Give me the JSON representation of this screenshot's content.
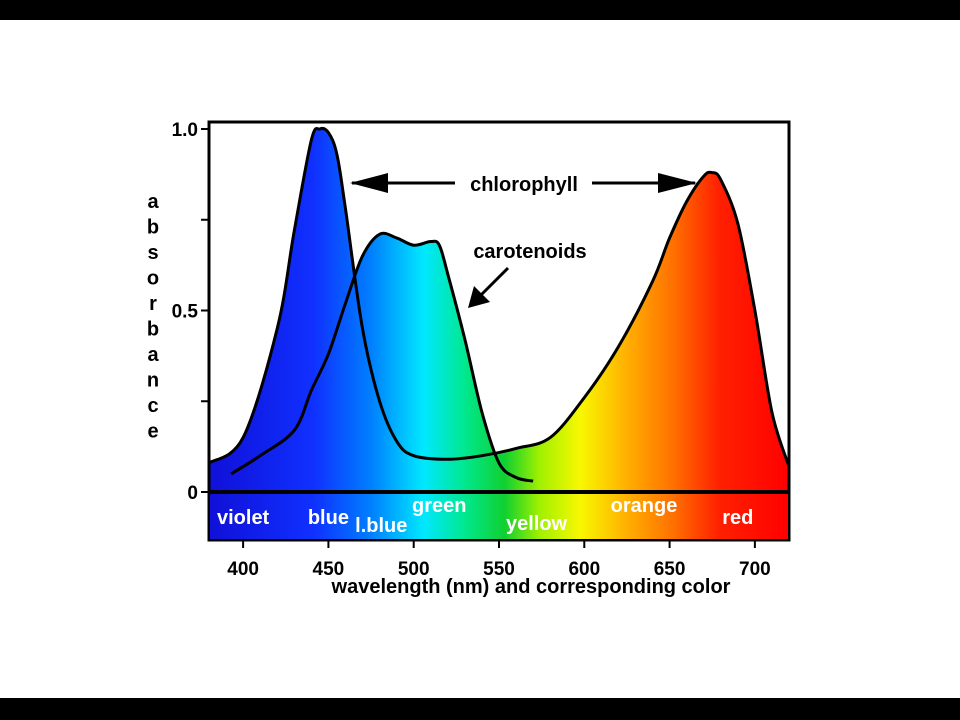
{
  "chart_data": {
    "type": "area",
    "xlabel": "wavelength (nm) and corresponding color",
    "ylabel": "absorbance",
    "xlim": [
      380,
      720
    ],
    "ylim": [
      0,
      1.0
    ],
    "x_ticks": [
      "400",
      "450",
      "500",
      "550",
      "600",
      "650",
      "700"
    ],
    "y_tick_labels": [
      {
        "value": 1.0,
        "label": "1.0"
      },
      {
        "value": 0.5,
        "label": "0.5"
      },
      {
        "value": 0,
        "label": "0"
      }
    ],
    "y_minor_ticks": [
      0.25,
      0.75
    ],
    "series": [
      {
        "name": "chlorophyll",
        "x": [
          380,
          400,
          420,
          430,
          440,
          445,
          450,
          455,
          460,
          470,
          480,
          490,
          500,
          520,
          540,
          560,
          580,
          600,
          620,
          640,
          650,
          660,
          670,
          675,
          680,
          690,
          700,
          710,
          720
        ],
        "y": [
          0.08,
          0.15,
          0.45,
          0.72,
          0.97,
          1.0,
          0.99,
          0.93,
          0.78,
          0.45,
          0.25,
          0.14,
          0.1,
          0.09,
          0.1,
          0.12,
          0.15,
          0.26,
          0.4,
          0.58,
          0.7,
          0.8,
          0.87,
          0.88,
          0.86,
          0.74,
          0.5,
          0.22,
          0.07
        ]
      },
      {
        "name": "carotenoids",
        "x": [
          393,
          410,
          430,
          440,
          450,
          460,
          470,
          480,
          490,
          500,
          510,
          515,
          520,
          530,
          540,
          550,
          560,
          570
        ],
        "y": [
          0.05,
          0.1,
          0.17,
          0.28,
          0.38,
          0.52,
          0.65,
          0.71,
          0.7,
          0.68,
          0.69,
          0.68,
          0.6,
          0.42,
          0.22,
          0.08,
          0.04,
          0.03
        ]
      }
    ],
    "color_bands": [
      {
        "label": "violet",
        "x": 400
      },
      {
        "label": "blue",
        "x": 450
      },
      {
        "label": "l.blue",
        "x": 481
      },
      {
        "label": "green",
        "x": 515
      },
      {
        "label": "yellow",
        "x": 572
      },
      {
        "label": "orange",
        "x": 635
      },
      {
        "label": "red",
        "x": 690
      }
    ],
    "annotations": {
      "chlorophyll_label": "chlorophyll",
      "carotenoids_label": "carotenoids"
    }
  },
  "colors": {
    "violet": "#1010e0",
    "blue": "#1a40ff",
    "light_blue": "#00e8ff",
    "green": "#10d040",
    "yellow": "#f0f000",
    "orange": "#ff9000",
    "red": "#ff0000"
  }
}
